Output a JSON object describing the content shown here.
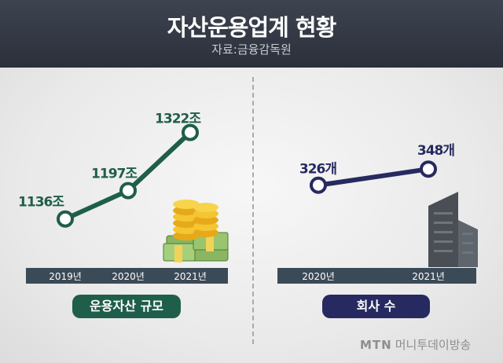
{
  "header": {
    "title": "자산운용업계 현황",
    "source": "자료:금융감독원"
  },
  "chart_data": [
    {
      "type": "line",
      "categories": [
        "2019년",
        "2020년",
        "2021년"
      ],
      "values": [
        1136,
        1197,
        1322
      ],
      "data_labels": [
        "1136조",
        "1197조",
        "1322조"
      ],
      "label": "운용자산 규모",
      "ylim": [
        1100,
        1350
      ],
      "color": "#1f5e4a",
      "axis_color": "#3b4a57",
      "grid": false
    },
    {
      "type": "line",
      "categories": [
        "2020년",
        "2021년"
      ],
      "values": [
        326,
        348
      ],
      "data_labels": [
        "326개",
        "348개"
      ],
      "label": "회사 수",
      "ylim": [
        300,
        360
      ],
      "color": "#262a60",
      "axis_color": "#3b4a57",
      "grid": false
    }
  ],
  "footer": {
    "brand_logo": "MTN",
    "brand_name": "머니투데이방송"
  }
}
